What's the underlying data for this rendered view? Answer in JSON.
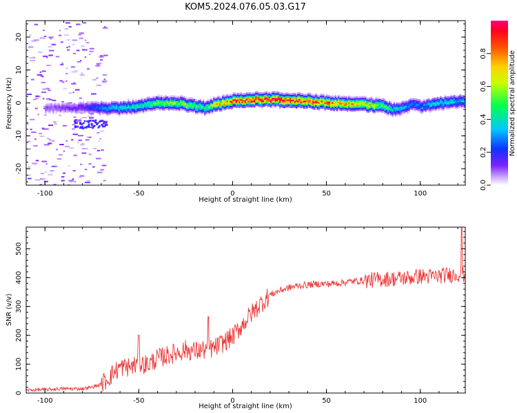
{
  "title": "KOM5.2024.076.05.03.G17",
  "chart_data": [
    {
      "type": "heatmap",
      "xlabel": "Height of straight line (km)",
      "ylabel": "Frequency (Hz)",
      "xlim": [
        -110,
        124
      ],
      "ylim": [
        -25,
        25
      ],
      "xticks": [
        -100,
        -50,
        0,
        50,
        100
      ],
      "yticks": [
        -20,
        -10,
        0,
        10,
        20
      ],
      "colorbar": {
        "label": "Normalized spectral amplitude",
        "ticks": [
          "0.0",
          "0.2",
          "0.4",
          "0.6",
          "0.8"
        ],
        "range": [
          0,
          1
        ],
        "colormap": "rainbow (purple-blue-cyan-green-yellow-orange-red-magenta)"
      },
      "ridge": {
        "x": [
          -95,
          -80,
          -70,
          -60,
          -50,
          -40,
          -30,
          -20,
          -15,
          -10,
          0,
          10,
          20,
          30,
          40,
          50,
          60,
          70,
          80,
          85,
          90,
          95,
          100,
          110,
          120
        ],
        "freq": [
          -1.5,
          -1.5,
          -1.5,
          -1.5,
          -1,
          0,
          0,
          -1,
          -1.5,
          -0.5,
          0.5,
          1,
          1,
          0.7,
          0.5,
          0,
          -0.3,
          -0.5,
          -1,
          -2,
          -1.5,
          -0.5,
          -1,
          0,
          0.5
        ],
        "amplitude": [
          0.1,
          0.15,
          0.3,
          0.4,
          0.45,
          0.55,
          0.6,
          0.55,
          0.45,
          0.7,
          0.85,
          0.95,
          0.97,
          0.98,
          0.9,
          0.85,
          0.8,
          0.75,
          0.55,
          0.4,
          0.35,
          0.3,
          0.3,
          0.4,
          0.35
        ]
      }
    },
    {
      "type": "line",
      "xlabel": "Height of straight line (km)",
      "ylabel": "SNR (v/v)",
      "xlim": [
        -110,
        124
      ],
      "ylim": [
        0,
        575
      ],
      "xticks": [
        -100,
        -50,
        0,
        50,
        100
      ],
      "yticks": [
        0,
        100,
        200,
        300,
        400,
        500
      ],
      "color": "#ee3333",
      "series": [
        {
          "x": [
            -110,
            -100,
            -90,
            -80,
            -75,
            -70,
            -65,
            -60,
            -55,
            -50,
            -45,
            -40,
            -35,
            -30,
            -25,
            -20,
            -15,
            -10,
            -5,
            0,
            5,
            10,
            15,
            20,
            25,
            30,
            35,
            40,
            45,
            50,
            55,
            60,
            65,
            70,
            75,
            80,
            85,
            90,
            95,
            100,
            105,
            110,
            115,
            120,
            124
          ],
          "y": [
            10,
            12,
            15,
            15,
            20,
            30,
            60,
            90,
            90,
            100,
            100,
            120,
            130,
            140,
            150,
            145,
            150,
            155,
            175,
            195,
            235,
            275,
            310,
            340,
            355,
            365,
            372,
            375,
            378,
            378,
            380,
            384,
            388,
            390,
            392,
            395,
            396,
            398,
            400,
            405,
            403,
            406,
            410,
            412,
            410
          ]
        }
      ],
      "peaks": [
        {
          "x": -50,
          "y": 200
        },
        {
          "x": -13,
          "y": 265
        },
        {
          "x": 122,
          "y": 575
        }
      ]
    }
  ]
}
